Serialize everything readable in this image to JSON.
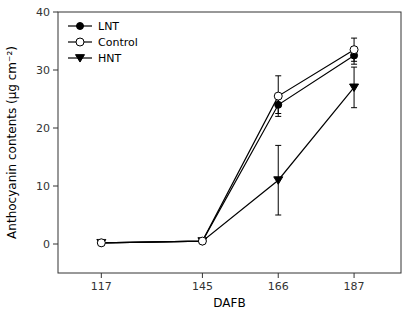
{
  "chart_data": {
    "type": "line",
    "x": [
      117,
      145,
      166,
      187
    ],
    "series": [
      {
        "name": "LNT",
        "color": "#000000",
        "marker": "circle",
        "line_style": "solid",
        "values": [
          0.2,
          0.5,
          24.0,
          32.5
        ],
        "errors": [
          0.1,
          0.2,
          1.5,
          1.5
        ]
      },
      {
        "name": "Control",
        "color": "#000000",
        "marker": "open-circle",
        "line_style": "solid",
        "values": [
          0.2,
          0.5,
          25.5,
          33.5
        ],
        "errors": [
          0.1,
          0.2,
          3.5,
          2.0
        ]
      },
      {
        "name": "HNT",
        "color": "#000000",
        "marker": "triangle-down",
        "line_style": "solid",
        "values": [
          0.2,
          0.5,
          11.0,
          27.0
        ],
        "errors": [
          0.1,
          0.2,
          6.0,
          3.5
        ]
      }
    ],
    "xlabel": "DAFB",
    "ylabel": "Anthocyanin contents (μg cm⁻²)",
    "xlim": [
      105,
      200
    ],
    "xticks": [
      117,
      145,
      166,
      187
    ],
    "ylim": [
      -5,
      40
    ],
    "yticks": [
      0,
      10,
      20,
      30,
      40
    ],
    "grid": false,
    "legend": "upper left"
  }
}
